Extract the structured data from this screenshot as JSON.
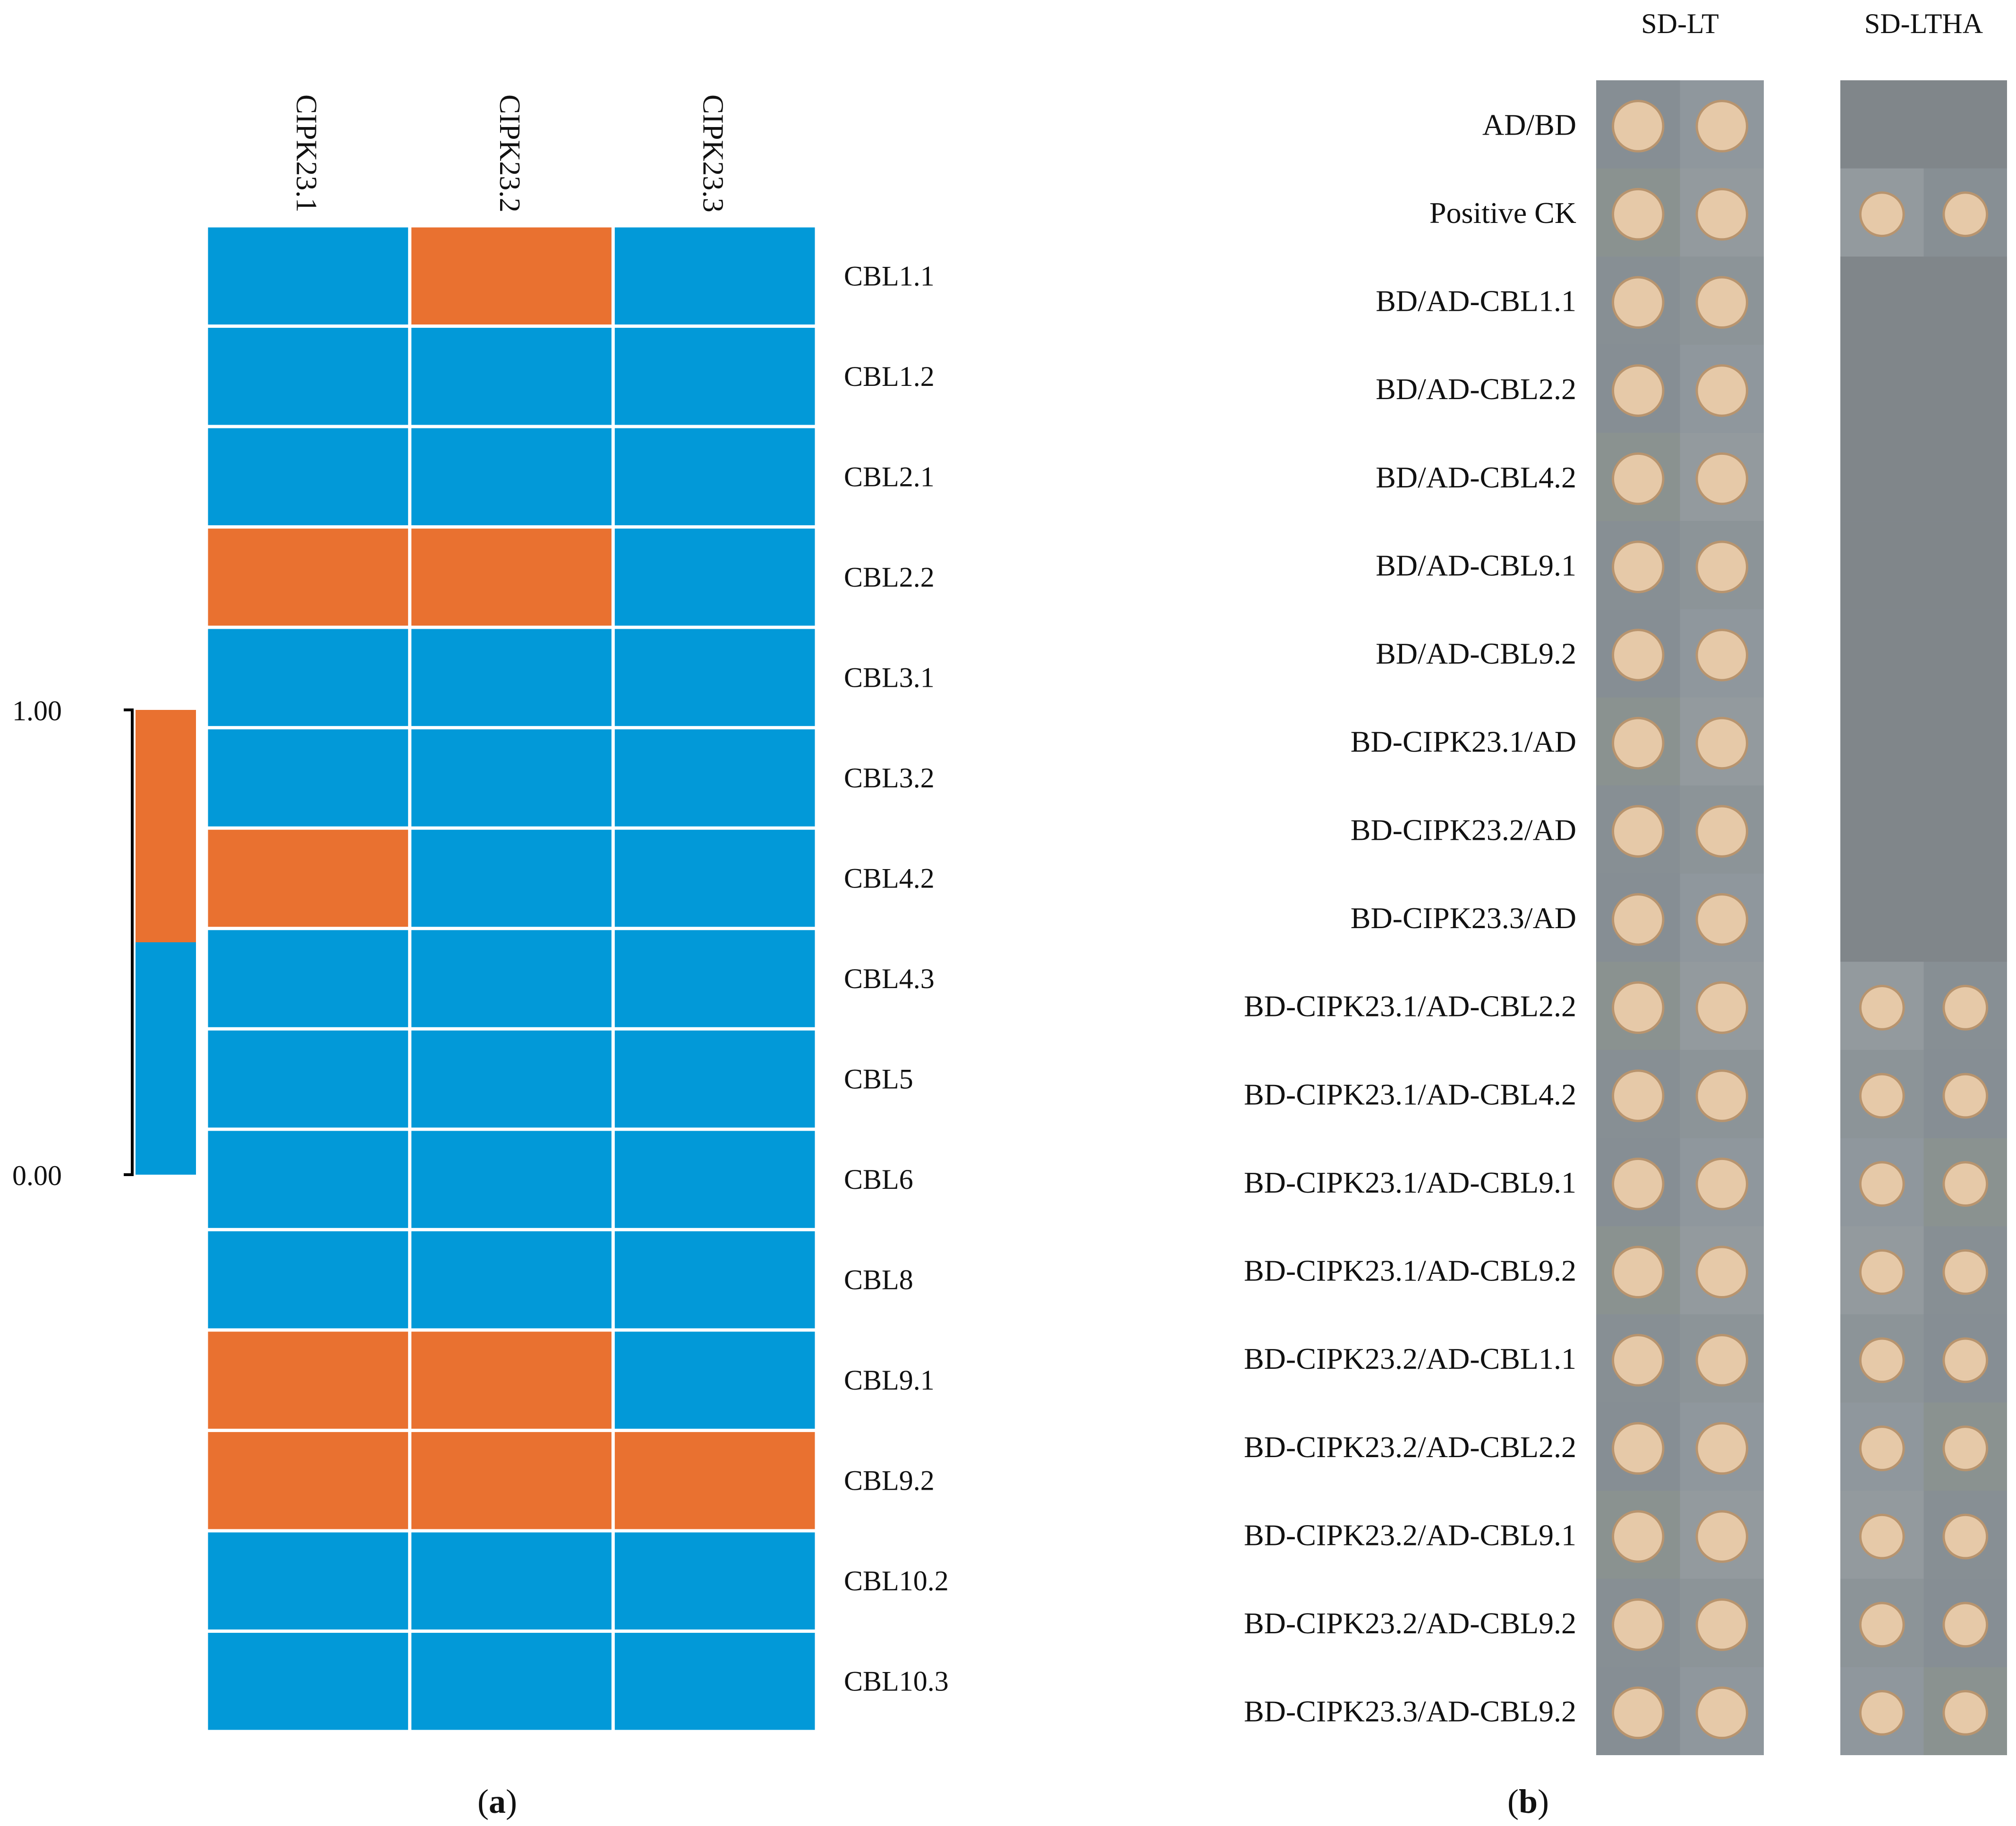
{
  "chart_data": [
    {
      "type": "heatmap",
      "panel_label": "a",
      "columns": [
        "CIPK23.1",
        "CIPK23.2",
        "CIPK23.3"
      ],
      "rows": [
        "CBL1.1",
        "CBL1.2",
        "CBL2.1",
        "CBL2.2",
        "CBL3.1",
        "CBL3.2",
        "CBL4.2",
        "CBL4.3",
        "CBL5",
        "CBL6",
        "CBL8",
        "CBL9.1",
        "CBL9.2",
        "CBL10.2",
        "CBL10.3"
      ],
      "values": [
        [
          0,
          1,
          0
        ],
        [
          0,
          0,
          0
        ],
        [
          0,
          0,
          0
        ],
        [
          1,
          1,
          0
        ],
        [
          0,
          0,
          0
        ],
        [
          0,
          0,
          0
        ],
        [
          1,
          0,
          0
        ],
        [
          0,
          0,
          0
        ],
        [
          0,
          0,
          0
        ],
        [
          0,
          0,
          0
        ],
        [
          0,
          0,
          0
        ],
        [
          1,
          1,
          0
        ],
        [
          1,
          1,
          1
        ],
        [
          0,
          0,
          0
        ],
        [
          0,
          0,
          0
        ]
      ],
      "colorbar": {
        "max_label": "1.00",
        "min_label": "0.00",
        "range": [
          0,
          1
        ]
      },
      "colors": {
        "high": "#E97130",
        "low": "#0299D8"
      }
    },
    {
      "type": "table",
      "panel_label": "b",
      "media": [
        "SD-LT",
        "SD-LTHA"
      ],
      "constructs": [
        "AD/BD",
        "Positive CK",
        "BD/AD-CBL1.1",
        "BD/AD-CBL2.2",
        "BD/AD-CBL4.2",
        "BD/AD-CBL9.1",
        "BD/AD-CBL9.2",
        "BD-CIPK23.1/AD",
        "BD-CIPK23.2/AD",
        "BD-CIPK23.3/AD",
        "BD-CIPK23.1/AD-CBL2.2",
        "BD-CIPK23.1/AD-CBL4.2",
        "BD-CIPK23.1/AD-CBL9.1",
        "BD-CIPK23.1/AD-CBL9.2",
        "BD-CIPK23.2/AD-CBL1.1",
        "BD-CIPK23.2/AD-CBL2.2",
        "BD-CIPK23.2/AD-CBL9.1",
        "BD-CIPK23.2/AD-CBL9.2",
        "BD-CIPK23.3/AD-CBL9.2"
      ],
      "growth_sd_lt": [
        true,
        true,
        true,
        true,
        true,
        true,
        true,
        true,
        true,
        true,
        true,
        true,
        true,
        true,
        true,
        true,
        true,
        true,
        true
      ],
      "growth_sd_ltha": [
        false,
        true,
        false,
        false,
        false,
        false,
        false,
        false,
        false,
        false,
        true,
        true,
        true,
        true,
        true,
        true,
        true,
        true,
        true
      ],
      "colors": {
        "plate": "#8C949A",
        "colony": "#E6C9A8",
        "colony_edge": "#B8946E",
        "negative_plate": "#7E8488"
      }
    }
  ]
}
